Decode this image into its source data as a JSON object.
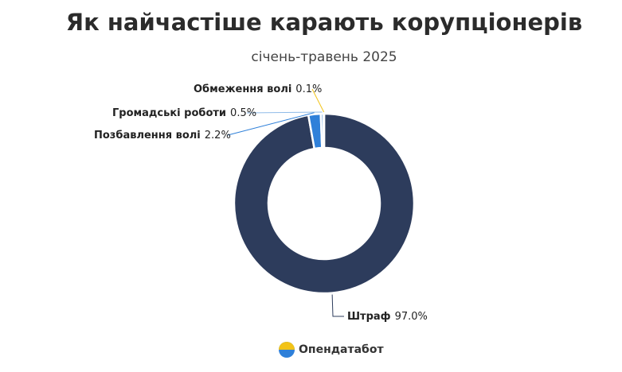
{
  "chart_data": {
    "type": "pie",
    "title": "Як найчастіше карають корупціонерів",
    "subtitle": "січень-травень 2025",
    "categories": [
      "Штраф",
      "Позбавлення волі",
      "Громадські роботи",
      "Обмеження волі"
    ],
    "values": [
      97.0,
      2.2,
      0.5,
      0.1
    ],
    "value_labels": [
      "97.0%",
      "2.2%",
      "0.5%",
      "0.1%"
    ],
    "colors": [
      "#2d3c5c",
      "#2f80d9",
      "#8fbbe8",
      "#f2c318"
    ],
    "source": "Опендатабот"
  }
}
